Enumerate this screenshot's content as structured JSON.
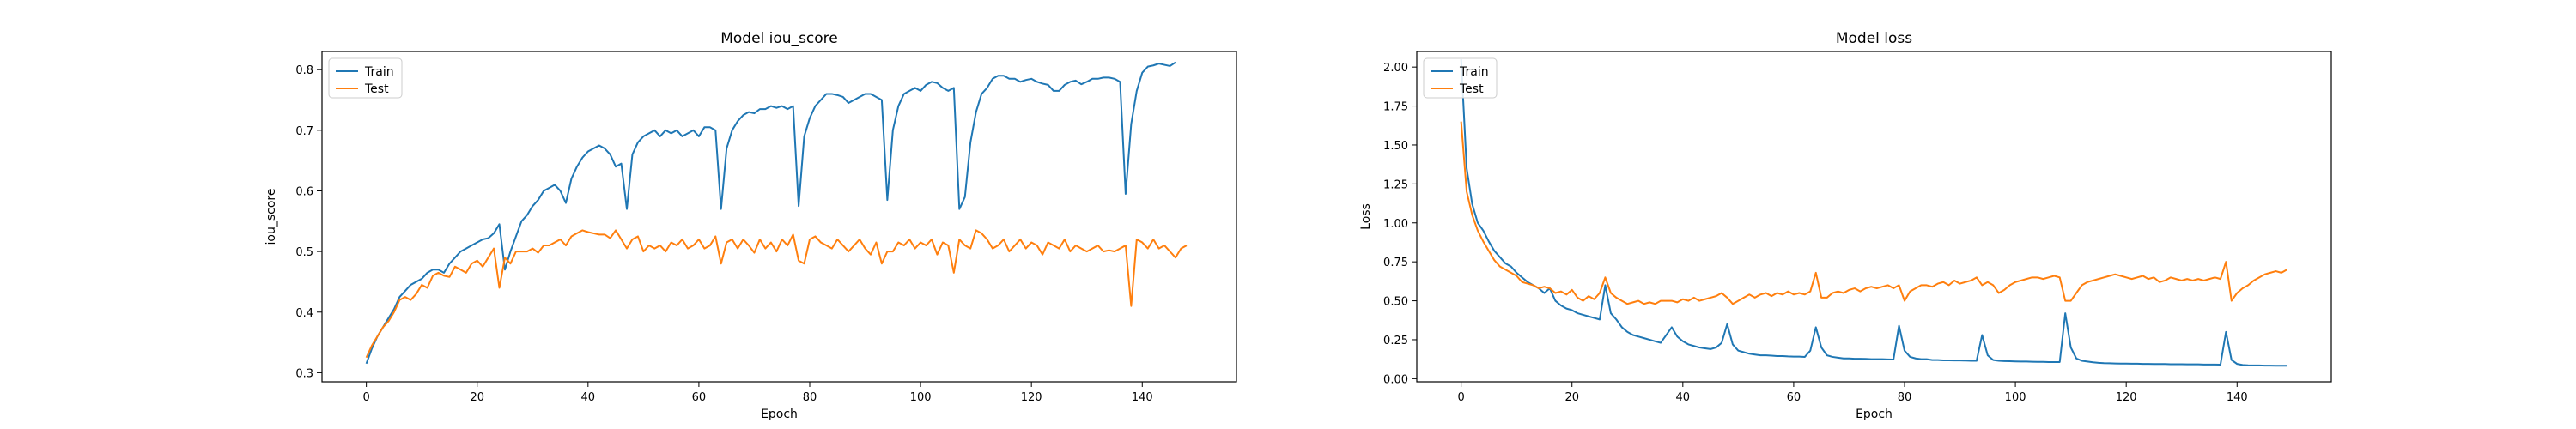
{
  "chart_data": [
    {
      "type": "line",
      "title": "Model iou_score",
      "xlabel": "Epoch",
      "ylabel": "iou_score",
      "xlim": [
        -8,
        157
      ],
      "ylim": [
        0.285,
        0.83
      ],
      "xticks": [
        0,
        20,
        40,
        60,
        80,
        100,
        120,
        140
      ],
      "yticks": [
        0.3,
        0.4,
        0.5,
        0.6,
        0.7,
        0.8
      ],
      "tick_decimals": 1,
      "grid": false,
      "legend": "top-left",
      "series": [
        {
          "name": "Train",
          "color": "#1f77b4",
          "values": [
            0.315,
            0.34,
            0.36,
            0.375,
            0.39,
            0.405,
            0.425,
            0.435,
            0.445,
            0.45,
            0.455,
            0.465,
            0.47,
            0.47,
            0.465,
            0.48,
            0.49,
            0.5,
            0.505,
            0.51,
            0.515,
            0.52,
            0.522,
            0.53,
            0.545,
            0.47,
            0.5,
            0.525,
            0.55,
            0.56,
            0.575,
            0.585,
            0.6,
            0.605,
            0.61,
            0.6,
            0.58,
            0.62,
            0.64,
            0.655,
            0.665,
            0.67,
            0.675,
            0.67,
            0.66,
            0.64,
            0.645,
            0.57,
            0.66,
            0.68,
            0.69,
            0.695,
            0.7,
            0.69,
            0.7,
            0.695,
            0.7,
            0.69,
            0.695,
            0.7,
            0.69,
            0.705,
            0.705,
            0.7,
            0.57,
            0.67,
            0.7,
            0.715,
            0.725,
            0.73,
            0.728,
            0.735,
            0.735,
            0.74,
            0.737,
            0.74,
            0.735,
            0.74,
            0.575,
            0.69,
            0.72,
            0.74,
            0.75,
            0.76,
            0.76,
            0.758,
            0.755,
            0.745,
            0.75,
            0.755,
            0.76,
            0.76,
            0.755,
            0.75,
            0.585,
            0.7,
            0.74,
            0.76,
            0.765,
            0.77,
            0.765,
            0.775,
            0.78,
            0.778,
            0.77,
            0.765,
            0.77,
            0.57,
            0.59,
            0.68,
            0.73,
            0.76,
            0.77,
            0.785,
            0.79,
            0.79,
            0.785,
            0.785,
            0.78,
            0.783,
            0.785,
            0.78,
            0.777,
            0.775,
            0.765,
            0.765,
            0.775,
            0.78,
            0.782,
            0.776,
            0.78,
            0.785,
            0.785,
            0.787,
            0.787,
            0.785,
            0.78,
            0.595,
            0.71,
            0.765,
            0.795,
            0.805,
            0.807,
            0.81,
            0.808,
            0.806,
            0.812
          ]
        },
        {
          "name": "Test",
          "color": "#ff7f0e",
          "values": [
            0.325,
            0.345,
            0.36,
            0.375,
            0.385,
            0.4,
            0.42,
            0.425,
            0.42,
            0.43,
            0.445,
            0.44,
            0.46,
            0.465,
            0.46,
            0.458,
            0.475,
            0.47,
            0.465,
            0.48,
            0.485,
            0.475,
            0.49,
            0.505,
            0.44,
            0.49,
            0.48,
            0.5,
            0.5,
            0.5,
            0.505,
            0.498,
            0.51,
            0.51,
            0.515,
            0.52,
            0.51,
            0.525,
            0.53,
            0.535,
            0.532,
            0.53,
            0.528,
            0.528,
            0.522,
            0.535,
            0.52,
            0.505,
            0.52,
            0.525,
            0.5,
            0.51,
            0.505,
            0.51,
            0.5,
            0.515,
            0.51,
            0.52,
            0.505,
            0.51,
            0.52,
            0.505,
            0.51,
            0.525,
            0.48,
            0.515,
            0.52,
            0.505,
            0.52,
            0.51,
            0.498,
            0.52,
            0.505,
            0.515,
            0.5,
            0.52,
            0.51,
            0.528,
            0.485,
            0.48,
            0.52,
            0.525,
            0.515,
            0.51,
            0.505,
            0.52,
            0.51,
            0.5,
            0.51,
            0.52,
            0.505,
            0.495,
            0.515,
            0.48,
            0.5,
            0.5,
            0.515,
            0.51,
            0.52,
            0.505,
            0.515,
            0.51,
            0.52,
            0.495,
            0.515,
            0.51,
            0.465,
            0.52,
            0.51,
            0.505,
            0.535,
            0.53,
            0.52,
            0.505,
            0.51,
            0.52,
            0.5,
            0.51,
            0.52,
            0.505,
            0.515,
            0.51,
            0.495,
            0.515,
            0.51,
            0.505,
            0.52,
            0.5,
            0.51,
            0.505,
            0.5,
            0.505,
            0.51,
            0.5,
            0.502,
            0.5,
            0.505,
            0.51,
            0.41,
            0.52,
            0.515,
            0.505,
            0.52,
            0.505,
            0.51,
            0.5,
            0.49,
            0.505,
            0.51
          ]
        }
      ]
    },
    {
      "type": "line",
      "title": "Model loss",
      "xlabel": "Epoch",
      "ylabel": "Loss",
      "xlim": [
        -8,
        157
      ],
      "ylim": [
        -0.02,
        2.1
      ],
      "xticks": [
        0,
        20,
        40,
        60,
        80,
        100,
        120,
        140
      ],
      "yticks": [
        0.0,
        0.25,
        0.5,
        0.75,
        1.0,
        1.25,
        1.5,
        1.75,
        2.0
      ],
      "tick_decimals": 2,
      "grid": false,
      "legend": "top-left",
      "series": [
        {
          "name": "Train",
          "color": "#1f77b4",
          "values": [
            2.05,
            1.35,
            1.12,
            1.0,
            0.95,
            0.88,
            0.82,
            0.78,
            0.74,
            0.72,
            0.68,
            0.65,
            0.62,
            0.6,
            0.58,
            0.55,
            0.58,
            0.5,
            0.47,
            0.45,
            0.44,
            0.42,
            0.41,
            0.4,
            0.39,
            0.38,
            0.6,
            0.42,
            0.38,
            0.33,
            0.3,
            0.28,
            0.27,
            0.26,
            0.25,
            0.24,
            0.23,
            0.28,
            0.33,
            0.27,
            0.24,
            0.22,
            0.21,
            0.2,
            0.195,
            0.19,
            0.2,
            0.23,
            0.35,
            0.22,
            0.18,
            0.17,
            0.16,
            0.155,
            0.15,
            0.15,
            0.148,
            0.145,
            0.145,
            0.143,
            0.142,
            0.142,
            0.14,
            0.18,
            0.33,
            0.2,
            0.15,
            0.14,
            0.135,
            0.13,
            0.13,
            0.128,
            0.128,
            0.127,
            0.125,
            0.125,
            0.125,
            0.124,
            0.123,
            0.34,
            0.18,
            0.14,
            0.13,
            0.125,
            0.125,
            0.12,
            0.12,
            0.118,
            0.118,
            0.117,
            0.117,
            0.116,
            0.115,
            0.115,
            0.28,
            0.15,
            0.12,
            0.115,
            0.113,
            0.112,
            0.111,
            0.11,
            0.11,
            0.109,
            0.108,
            0.108,
            0.107,
            0.107,
            0.107,
            0.42,
            0.2,
            0.13,
            0.115,
            0.11,
            0.105,
            0.102,
            0.1,
            0.099,
            0.098,
            0.097,
            0.097,
            0.096,
            0.096,
            0.095,
            0.095,
            0.094,
            0.094,
            0.094,
            0.093,
            0.093,
            0.093,
            0.092,
            0.092,
            0.092,
            0.091,
            0.091,
            0.091,
            0.09,
            0.3,
            0.12,
            0.095,
            0.088,
            0.086,
            0.085,
            0.085,
            0.084,
            0.084,
            0.083,
            0.083,
            0.083
          ]
        },
        {
          "name": "Test",
          "color": "#ff7f0e",
          "values": [
            1.65,
            1.2,
            1.05,
            0.95,
            0.88,
            0.82,
            0.76,
            0.72,
            0.7,
            0.68,
            0.66,
            0.62,
            0.61,
            0.6,
            0.58,
            0.59,
            0.58,
            0.55,
            0.56,
            0.54,
            0.57,
            0.52,
            0.5,
            0.53,
            0.51,
            0.55,
            0.65,
            0.55,
            0.52,
            0.5,
            0.48,
            0.49,
            0.5,
            0.48,
            0.49,
            0.48,
            0.5,
            0.5,
            0.5,
            0.49,
            0.51,
            0.5,
            0.52,
            0.5,
            0.51,
            0.52,
            0.53,
            0.55,
            0.52,
            0.48,
            0.5,
            0.52,
            0.54,
            0.52,
            0.54,
            0.55,
            0.53,
            0.55,
            0.54,
            0.56,
            0.54,
            0.55,
            0.54,
            0.56,
            0.68,
            0.52,
            0.52,
            0.55,
            0.56,
            0.55,
            0.57,
            0.58,
            0.56,
            0.58,
            0.59,
            0.58,
            0.59,
            0.6,
            0.58,
            0.6,
            0.5,
            0.56,
            0.58,
            0.6,
            0.6,
            0.59,
            0.61,
            0.62,
            0.6,
            0.63,
            0.61,
            0.62,
            0.63,
            0.65,
            0.6,
            0.62,
            0.6,
            0.55,
            0.57,
            0.6,
            0.62,
            0.63,
            0.64,
            0.65,
            0.65,
            0.64,
            0.65,
            0.66,
            0.65,
            0.5,
            0.5,
            0.55,
            0.6,
            0.62,
            0.63,
            0.64,
            0.65,
            0.66,
            0.67,
            0.66,
            0.65,
            0.64,
            0.65,
            0.66,
            0.64,
            0.65,
            0.62,
            0.63,
            0.65,
            0.64,
            0.63,
            0.64,
            0.63,
            0.64,
            0.63,
            0.64,
            0.65,
            0.64,
            0.75,
            0.5,
            0.55,
            0.58,
            0.6,
            0.63,
            0.65,
            0.67,
            0.68,
            0.69,
            0.68,
            0.7
          ]
        }
      ]
    }
  ]
}
